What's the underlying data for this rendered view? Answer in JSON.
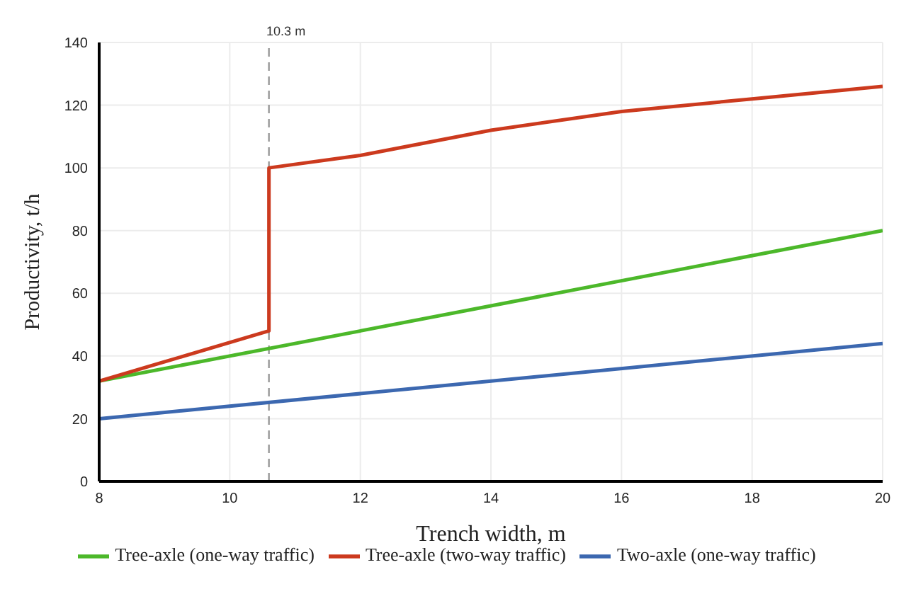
{
  "chart_data": {
    "type": "line",
    "xlabel": "Trench width, m",
    "ylabel": "Productivity, t/h",
    "xlim": [
      8,
      20
    ],
    "xticks": [
      8,
      10,
      12,
      14,
      16,
      18,
      20
    ],
    "ylim": [
      0,
      140
    ],
    "yticks": [
      0,
      20,
      40,
      60,
      80,
      100,
      120,
      140
    ],
    "grid": true,
    "legend": "bottom",
    "marker": "none",
    "line_style": "solid",
    "ref_lines": [
      {
        "axis": "x",
        "value": 10.6,
        "label": "10.3 m",
        "color": "#999999",
        "line_style": "dashed"
      }
    ],
    "series": [
      {
        "name": "Two-axle (one-way traffic)",
        "color": "#3c68b0",
        "x": [
          8,
          20
        ],
        "values": [
          20,
          44
        ]
      },
      {
        "name": "Tree-axle (one-way traffic)",
        "color": "#4cb82a",
        "x": [
          8,
          20
        ],
        "values": [
          32,
          80
        ]
      },
      {
        "name": "Tree-axle (two-way traffic)",
        "color": "#cc3a1e",
        "x": [
          8,
          10.6,
          10.6,
          12,
          14,
          16,
          18,
          20
        ],
        "values": [
          32,
          48,
          100,
          104,
          112,
          118,
          122,
          126
        ]
      }
    ]
  }
}
